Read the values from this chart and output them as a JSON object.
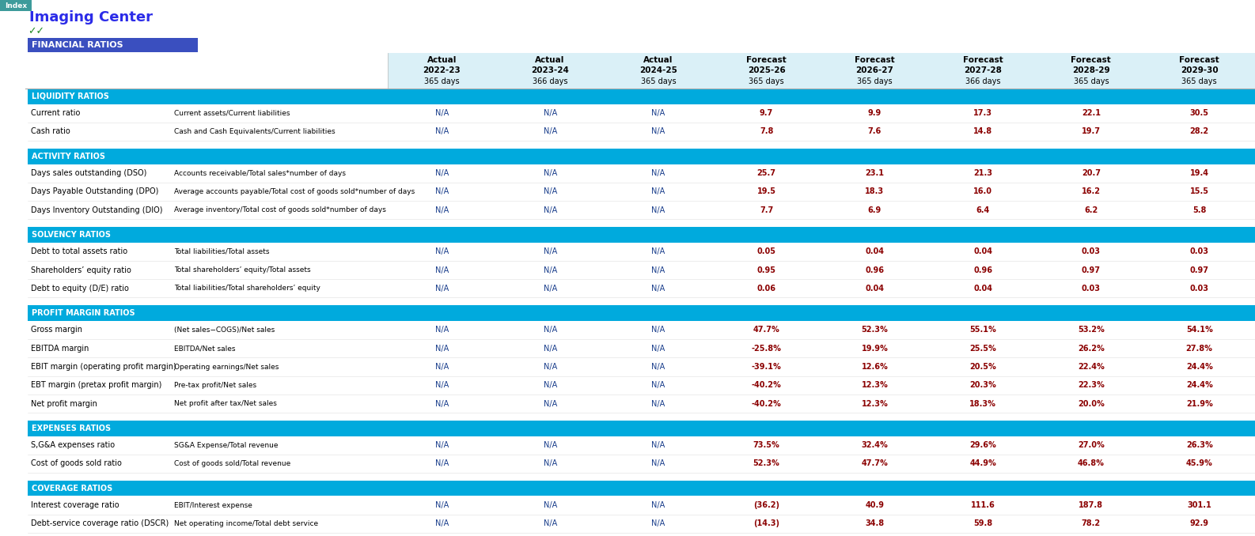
{
  "title": "Imaging Center",
  "subtitle": "FINANCIAL RATIOS",
  "index_label": "Index",
  "checkmarks": "✓✓",
  "col_headers_type": [
    "Actual",
    "Actual",
    "Actual",
    "Forecast",
    "Forecast",
    "Forecast",
    "Forecast",
    "Forecast"
  ],
  "col_headers_year": [
    "2022-23",
    "2023-24",
    "2024-25",
    "2025-26",
    "2026-27",
    "2027-28",
    "2028-29",
    "2029-30"
  ],
  "col_headers_days": [
    "365 days",
    "366 days",
    "365 days",
    "365 days",
    "365 days",
    "366 days",
    "365 days",
    "365 days"
  ],
  "sections": [
    {
      "name": "LIQUIDITY RATIOS",
      "rows": [
        {
          "label": "Current ratio",
          "formula": "Current assets/Current liabilities",
          "values": [
            "N/A",
            "N/A",
            "N/A",
            "9.7",
            "9.9",
            "17.3",
            "22.1",
            "30.5"
          ]
        },
        {
          "label": "Cash ratio",
          "formula": "Cash and Cash Equivalents/Current liabilities",
          "values": [
            "N/A",
            "N/A",
            "N/A",
            "7.8",
            "7.6",
            "14.8",
            "19.7",
            "28.2"
          ]
        }
      ]
    },
    {
      "name": "ACTIVITY RATIOS",
      "rows": [
        {
          "label": "Days sales outstanding (DSO)",
          "formula": "Accounts receivable/Total sales*number of days",
          "values": [
            "N/A",
            "N/A",
            "N/A",
            "25.7",
            "23.1",
            "21.3",
            "20.7",
            "19.4"
          ]
        },
        {
          "label": "Days Payable Outstanding (DPO)",
          "formula": "Average accounts payable/Total cost of goods sold*number of days",
          "values": [
            "N/A",
            "N/A",
            "N/A",
            "19.5",
            "18.3",
            "16.0",
            "16.2",
            "15.5"
          ]
        },
        {
          "label": "Days Inventory Outstanding (DIO)",
          "formula": "Average inventory/Total cost of goods sold*number of days",
          "values": [
            "N/A",
            "N/A",
            "N/A",
            "7.7",
            "6.9",
            "6.4",
            "6.2",
            "5.8"
          ]
        }
      ]
    },
    {
      "name": "SOLVENCY RATIOS",
      "rows": [
        {
          "label": "Debt to total assets ratio",
          "formula": "Total liabilities/Total assets",
          "values": [
            "N/A",
            "N/A",
            "N/A",
            "0.05",
            "0.04",
            "0.04",
            "0.03",
            "0.03"
          ]
        },
        {
          "label": "Shareholders’ equity ratio",
          "formula": "Total shareholders’ equity/Total assets",
          "values": [
            "N/A",
            "N/A",
            "N/A",
            "0.95",
            "0.96",
            "0.96",
            "0.97",
            "0.97"
          ]
        },
        {
          "label": "Debt to equity (D/E) ratio",
          "formula": "Total liabilities/Total shareholders’ equity",
          "values": [
            "N/A",
            "N/A",
            "N/A",
            "0.06",
            "0.04",
            "0.04",
            "0.03",
            "0.03"
          ]
        }
      ]
    },
    {
      "name": "PROFIT MARGIN RATIOS",
      "rows": [
        {
          "label": "Gross margin",
          "formula": "(Net sales−COGS)/Net sales",
          "values": [
            "N/A",
            "N/A",
            "N/A",
            "47.7%",
            "52.3%",
            "55.1%",
            "53.2%",
            "54.1%"
          ]
        },
        {
          "label": "EBITDA margin",
          "formula": "EBITDA/Net sales",
          "values": [
            "N/A",
            "N/A",
            "N/A",
            "-25.8%",
            "19.9%",
            "25.5%",
            "26.2%",
            "27.8%"
          ]
        },
        {
          "label": "EBIT margin (operating profit margin)",
          "formula": "Operating earnings/Net sales",
          "values": [
            "N/A",
            "N/A",
            "N/A",
            "-39.1%",
            "12.6%",
            "20.5%",
            "22.4%",
            "24.4%"
          ]
        },
        {
          "label": "EBT margin (pretax profit margin)",
          "formula": "Pre-tax profit/Net sales",
          "values": [
            "N/A",
            "N/A",
            "N/A",
            "-40.2%",
            "12.3%",
            "20.3%",
            "22.3%",
            "24.4%"
          ]
        },
        {
          "label": "Net profit margin",
          "formula": "Net profit after tax/Net sales",
          "values": [
            "N/A",
            "N/A",
            "N/A",
            "-40.2%",
            "12.3%",
            "18.3%",
            "20.0%",
            "21.9%"
          ]
        }
      ]
    },
    {
      "name": "EXPENSES RATIOS",
      "rows": [
        {
          "label": "S,G&A expenses ratio",
          "formula": "SG&A Expense/Total revenue",
          "values": [
            "N/A",
            "N/A",
            "N/A",
            "73.5%",
            "32.4%",
            "29.6%",
            "27.0%",
            "26.3%"
          ]
        },
        {
          "label": "Cost of goods sold ratio",
          "formula": "Cost of goods sold/Total revenue",
          "values": [
            "N/A",
            "N/A",
            "N/A",
            "52.3%",
            "47.7%",
            "44.9%",
            "46.8%",
            "45.9%"
          ]
        }
      ]
    },
    {
      "name": "COVERAGE RATIOS",
      "rows": [
        {
          "label": "Interest coverage ratio",
          "formula": "EBIT/Interest expense",
          "values": [
            "N/A",
            "N/A",
            "N/A",
            "(36.2)",
            "40.9",
            "111.6",
            "187.8",
            "301.1"
          ]
        },
        {
          "label": "Debt-service coverage ratio (DSCR)",
          "formula": "Net operating income/Total debt service",
          "values": [
            "N/A",
            "N/A",
            "N/A",
            "(14.3)",
            "34.8",
            "59.8",
            "78.2",
            "92.9"
          ]
        }
      ]
    }
  ],
  "colors": {
    "title": "#2B2BE8",
    "index_bg": "#3D9B9B",
    "index_text": "#FFFFFF",
    "header_bg": "#DAF0F7",
    "section_bg": "#00AADD",
    "section_text": "#FFFFFF",
    "row_bg_white": "#FFFFFF",
    "label_text": "#000000",
    "formula_text": "#000000",
    "na_text": "#1A3E8C",
    "value_text": "#8B0000",
    "financial_ratios_bg": "#3A4FBF",
    "financial_ratios_text": "#FFFFFF",
    "checkmark_color": "#228B22",
    "border_line": "#AAAAAA",
    "section_separator": "#FFFFFF"
  }
}
